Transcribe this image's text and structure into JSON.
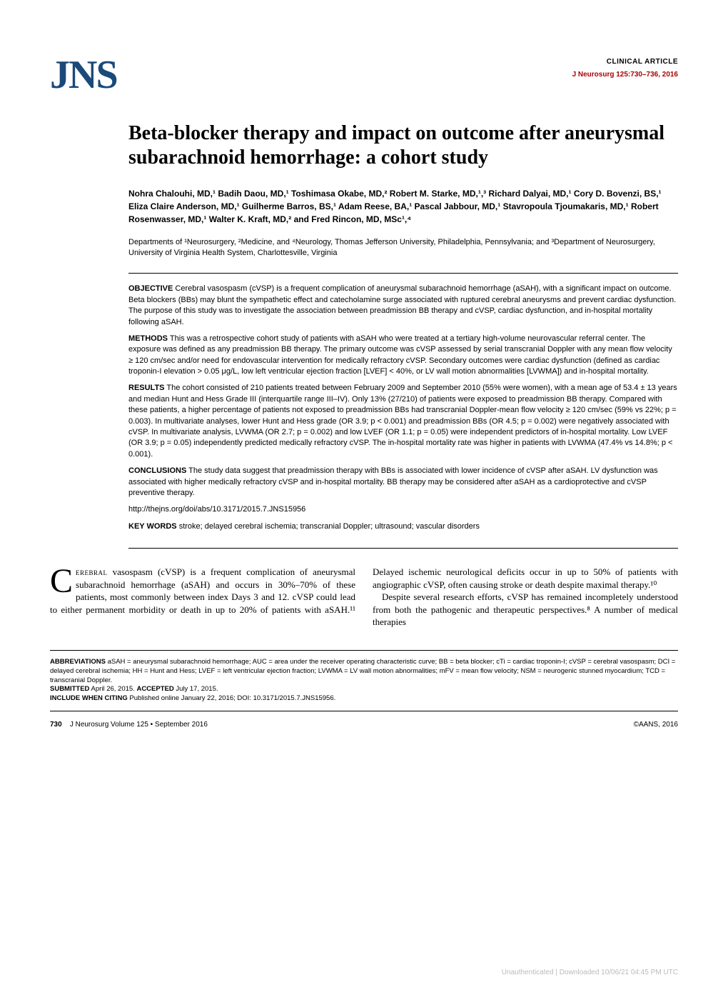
{
  "header": {
    "logo_text": "JNS",
    "article_type": "CLINICAL ARTICLE",
    "journal_name": "J Neurosurg",
    "citation": "125:730–736, 2016"
  },
  "title": "Beta-blocker therapy and impact on outcome after aneurysmal subarachnoid hemorrhage: a cohort study",
  "authors_html": "Nohra Chalouhi, MD,¹ Badih Daou, MD,¹ Toshimasa Okabe, MD,² Robert M. Starke, MD,¹,³ Richard Dalyai, MD,¹ Cory D. Bovenzi, BS,¹ Eliza Claire Anderson, MD,¹ Guilherme Barros, BS,¹ Adam Reese, BA,¹ Pascal Jabbour, MD,¹ Stavropoula Tjoumakaris, MD,¹ Robert Rosenwasser, MD,¹ Walter K. Kraft, MD,² and Fred Rincon, MD, MSc¹,⁴",
  "affiliations": "Departments of ¹Neurosurgery, ²Medicine, and ⁴Neurology, Thomas Jefferson University, Philadelphia, Pennsylvania; and ³Department of Neurosurgery, University of Virginia Health System, Charlottesville, Virginia",
  "abstract": {
    "objective_label": "OBJECTIVE",
    "objective": "Cerebral vasospasm (cVSP) is a frequent complication of aneurysmal subarachnoid hemorrhage (aSAH), with a significant impact on outcome. Beta blockers (BBs) may blunt the sympathetic effect and catecholamine surge associated with ruptured cerebral aneurysms and prevent cardiac dysfunction. The purpose of this study was to investigate the association between preadmission BB therapy and cVSP, cardiac dysfunction, and in-hospital mortality following aSAH.",
    "methods_label": "METHODS",
    "methods": "This was a retrospective cohort study of patients with aSAH who were treated at a tertiary high-volume neurovascular referral center. The exposure was defined as any preadmission BB therapy. The primary outcome was cVSP assessed by serial transcranial Doppler with any mean flow velocity ≥ 120 cm/sec and/or need for endovascular intervention for medically refractory cVSP. Secondary outcomes were cardiac dysfunction (defined as cardiac troponin-I elevation > 0.05 μg/L, low left ventricular ejection fraction [LVEF] < 40%, or LV wall motion abnormalities [LVWMA]) and in-hospital mortality.",
    "results_label": "RESULTS",
    "results": "The cohort consisted of 210 patients treated between February 2009 and September 2010 (55% were women), with a mean age of 53.4 ± 13 years and median Hunt and Hess Grade III (interquartile range III–IV). Only 13% (27/210) of patients were exposed to preadmission BB therapy. Compared with these patients, a higher percentage of patients not exposed to preadmission BBs had transcranial Doppler-mean flow velocity ≥ 120 cm/sec (59% vs 22%; p = 0.003). In multivariate analyses, lower Hunt and Hess grade (OR 3.9; p < 0.001) and preadmission BBs (OR 4.5; p = 0.002) were negatively associated with cVSP. In multivariate analysis, LVWMA (OR 2.7; p = 0.002) and low LVEF (OR 1.1; p = 0.05) were independent predictors of in-hospital mortality. Low LVEF (OR 3.9; p = 0.05) independently predicted medically refractory cVSP. The in-hospital mortality rate was higher in patients with LVWMA (47.4% vs 14.8%; p < 0.001).",
    "conclusions_label": "CONCLUSIONS",
    "conclusions": "The study data suggest that preadmission therapy with BBs is associated with lower incidence of cVSP after aSAH. LV dysfunction was associated with higher medically refractory cVSP and in-hospital mortality. BB therapy may be considered after aSAH as a cardioprotective and cVSP preventive therapy.",
    "doi_url": "http://thejns.org/doi/abs/10.3171/2015.7.JNS15956",
    "keywords_label": "KEY WORDS",
    "keywords": "stroke; delayed cerebral ischemia; transcranial Doppler; ultrasound; vascular disorders"
  },
  "body": {
    "dropcap": "C",
    "first_smallcaps": "erebral",
    "p1_rest": " vasospasm (cVSP) is a frequent complication of aneurysmal subarachnoid hemorrhage (aSAH) and occurs in 30%–70% of these patients, most commonly between index Days 3 and 12. cVSP could lead to either permanent morbidity or death in up to 20% of patients with aSAH.¹¹ Delayed ischemic neurological",
    "p2": "deficits occur in up to 50% of patients with angiographic cVSP, often causing stroke or death despite maximal therapy.¹⁰",
    "p3": "Despite several research efforts, cVSP has remained incompletely understood from both the pathogenic and therapeutic perspectives.⁸ A number of medical therapies"
  },
  "footer_box": {
    "abbrev_label": "ABBREVIATIONS",
    "abbreviations": "aSAH = aneurysmal subarachnoid hemorrhage; AUC = area under the receiver operating characteristic curve; BB = beta blocker; cTi = cardiac troponin-I; cVSP = cerebral vasospasm; DCI = delayed cerebral ischemia; HH = Hunt and Hess; LVEF = left ventricular ejection fraction; LVWMA = LV wall motion abnormalities; mFV = mean flow velocity; NSM = neurogenic stunned myocardium; TCD = transcranial Doppler.",
    "submitted_label": "SUBMITTED",
    "submitted": "April 26, 2015.",
    "accepted_label": "ACCEPTED",
    "accepted": "July 17, 2015.",
    "include_label": "INCLUDE WHEN CITING",
    "include": "Published online January 22, 2016; DOI: 10.3171/2015.7.JNS15956."
  },
  "page_footer": {
    "page_number": "730",
    "journal_vol": "J Neurosurg Volume 125 • September 2016",
    "copyright": "©AANS, 2016"
  },
  "watermark": "Unauthenticated | Downloaded 10/06/21 04:45 PM UTC",
  "colors": {
    "logo": "#1a4a7a",
    "citation": "#a00000",
    "text": "#000000",
    "watermark": "#bbbbbb"
  }
}
